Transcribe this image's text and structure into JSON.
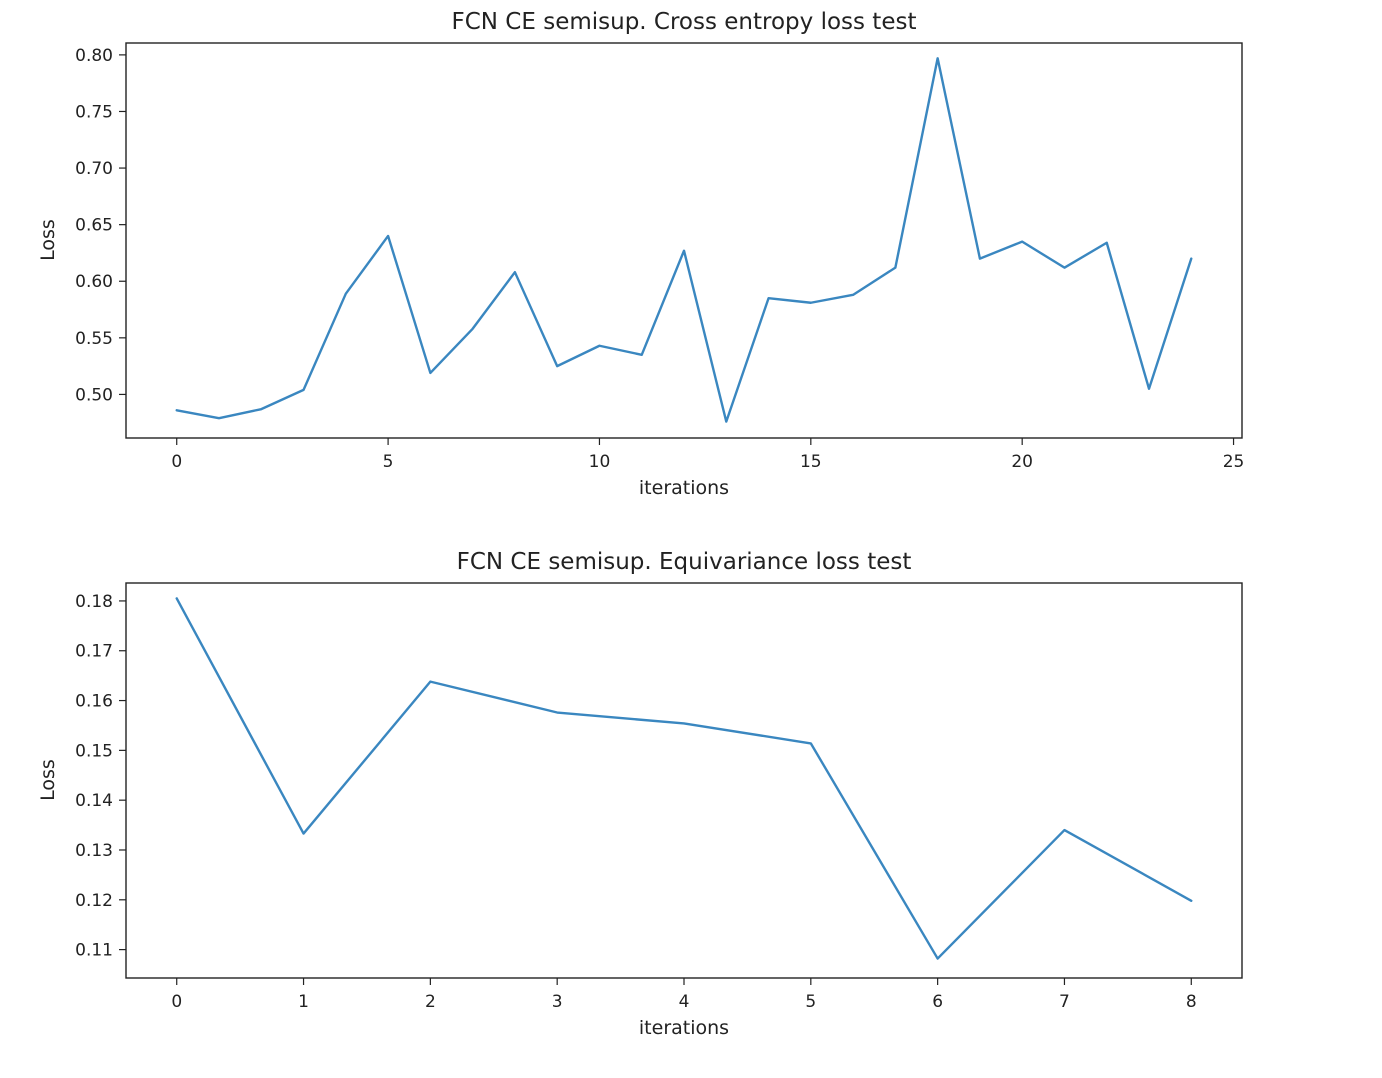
{
  "chart_data": [
    {
      "type": "line",
      "title": "FCN CE semisup. Cross entropy loss test",
      "xlabel": "iterations",
      "ylabel": "Loss",
      "xlim": [
        -1.2,
        25.2
      ],
      "ylim": [
        0.4615,
        0.8105
      ],
      "xticks": [
        0,
        5,
        10,
        15,
        20,
        25
      ],
      "yticks": [
        0.5,
        0.55,
        0.6,
        0.65,
        0.7,
        0.75,
        0.8
      ],
      "xtick_labels": [
        "0",
        "5",
        "10",
        "15",
        "20",
        "25"
      ],
      "ytick_labels": [
        "0.50",
        "0.55",
        "0.60",
        "0.65",
        "0.70",
        "0.75",
        "0.80"
      ],
      "grid": false,
      "series": [
        {
          "color": "#3a87c0",
          "x": [
            0,
            1,
            2,
            3,
            4,
            5,
            6,
            7,
            8,
            9,
            10,
            11,
            12,
            13,
            14,
            15,
            16,
            17,
            18,
            19,
            20,
            21,
            22,
            23,
            24
          ],
          "y": [
            0.486,
            0.479,
            0.487,
            0.504,
            0.589,
            0.64,
            0.519,
            0.558,
            0.608,
            0.525,
            0.543,
            0.535,
            0.627,
            0.476,
            0.585,
            0.581,
            0.588,
            0.612,
            0.797,
            0.62,
            0.635,
            0.612,
            0.634,
            0.505,
            0.62
          ]
        }
      ]
    },
    {
      "type": "line",
      "title": "FCN CE semisup. Equivariance loss test",
      "xlabel": "iterations",
      "ylabel": "Loss",
      "xlim": [
        -0.4,
        8.4
      ],
      "ylim": [
        0.1043,
        0.1836
      ],
      "xticks": [
        0,
        1,
        2,
        3,
        4,
        5,
        6,
        7,
        8
      ],
      "yticks": [
        0.11,
        0.12,
        0.13,
        0.14,
        0.15,
        0.16,
        0.17,
        0.18
      ],
      "xtick_labels": [
        "0",
        "1",
        "2",
        "3",
        "4",
        "5",
        "6",
        "7",
        "8"
      ],
      "ytick_labels": [
        "0.11",
        "0.12",
        "0.13",
        "0.14",
        "0.15",
        "0.16",
        "0.17",
        "0.18"
      ],
      "grid": false,
      "series": [
        {
          "color": "#3a87c0",
          "x": [
            0,
            1,
            2,
            3,
            4,
            5,
            6,
            7,
            8
          ],
          "y": [
            0.1805,
            0.1333,
            0.1638,
            0.1576,
            0.1554,
            0.1514,
            0.1082,
            0.134,
            0.1198
          ]
        }
      ]
    }
  ]
}
